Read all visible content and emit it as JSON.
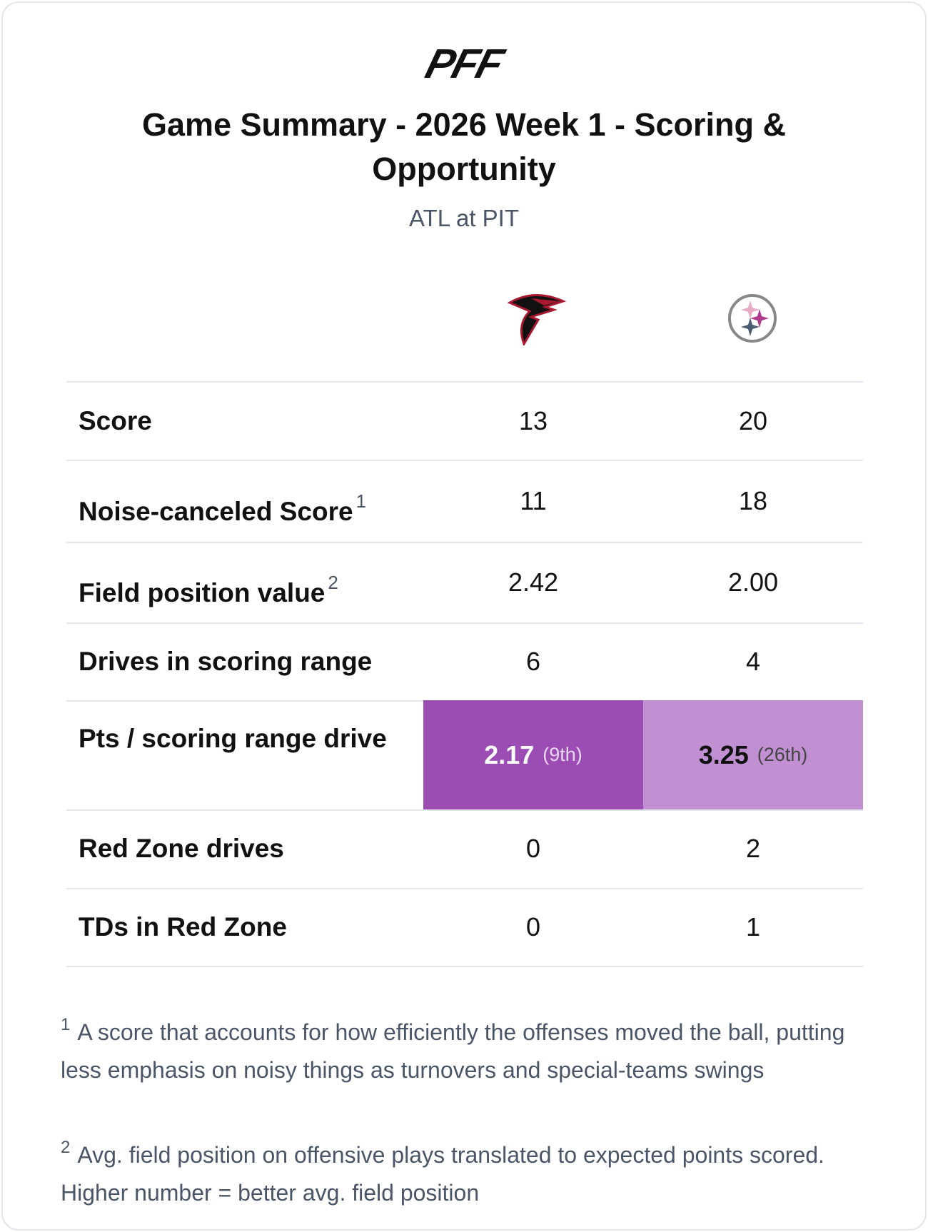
{
  "header": {
    "logo": "PFF",
    "title": "Game Summary - 2026 Week 1 - Scoring & Opportunity",
    "subtitle": "ATL at PIT"
  },
  "table": {
    "rows": [
      {
        "label": "Score",
        "values": [
          "13",
          "20"
        ]
      },
      {
        "label": "Noise-canceled Score",
        "note": "1",
        "values": [
          "11",
          "18"
        ]
      },
      {
        "label": "Field position value",
        "note": "2",
        "values": [
          "2.42",
          "2.00"
        ]
      },
      {
        "label": "Drives in scoring range",
        "values": [
          "6",
          "4"
        ]
      },
      {
        "label": "Pts / scoring range drive",
        "values": [
          "2.17",
          "3.25"
        ],
        "ranks": [
          "(9th)",
          "(26th)"
        ]
      },
      {
        "label": "Red Zone drives",
        "values": [
          "0",
          "2"
        ]
      },
      {
        "label": "TDs in Red Zone",
        "values": [
          "0",
          "1"
        ]
      }
    ]
  },
  "footnotes": [
    {
      "marker": "1",
      "text": "A score that accounts for how efficiently the offenses moved the ball, putting less emphasis on noisy things as turnovers and special-teams swings"
    },
    {
      "marker": "2",
      "text": "Avg. field position on offensive plays translated to expected points scored. Higher number = better avg. field position"
    }
  ]
}
